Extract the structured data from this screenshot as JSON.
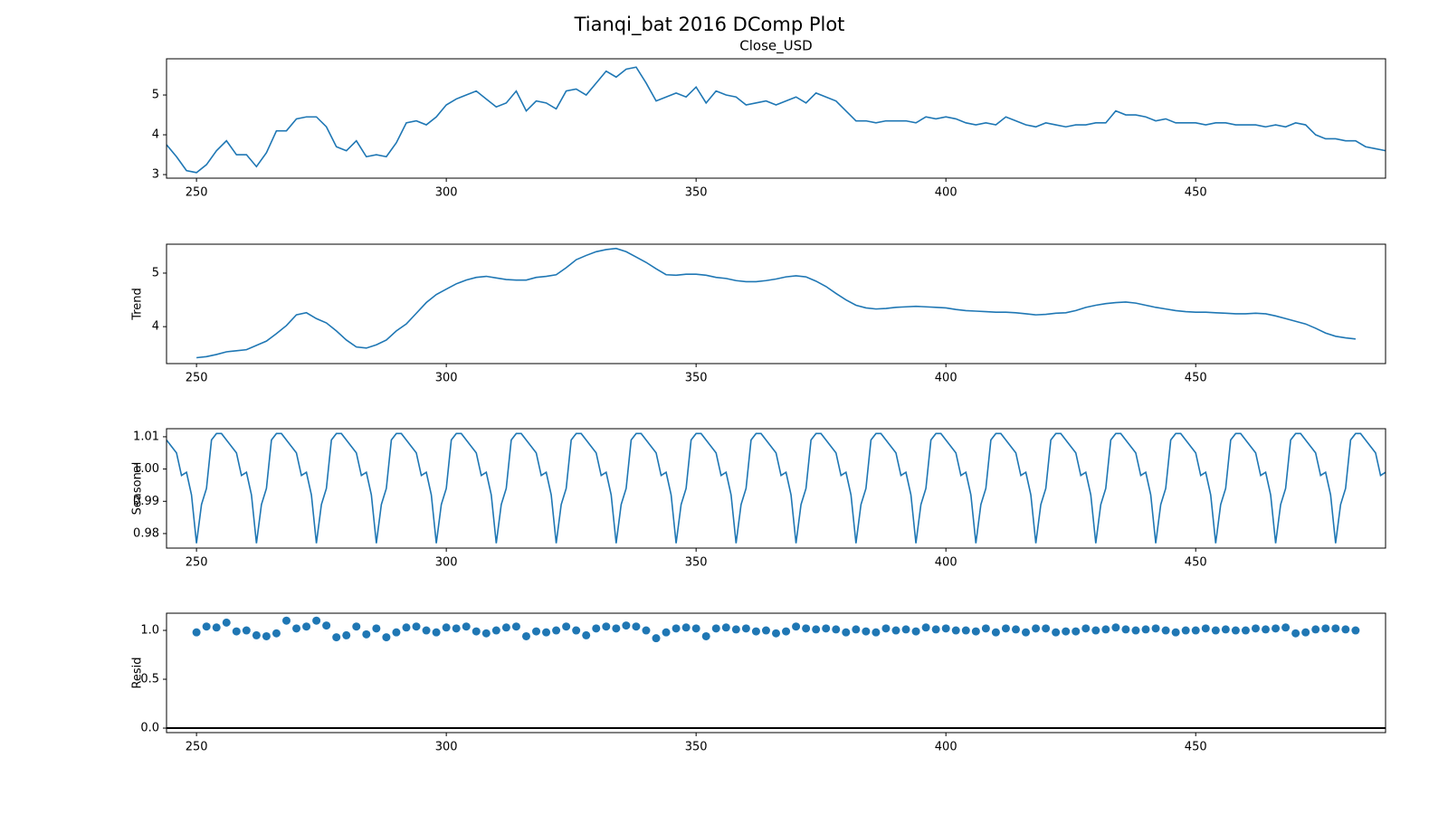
{
  "title": "Tianqi_bat 2016 DComp Plot",
  "chart_data": [
    {
      "type": "line",
      "title": "Close_USD",
      "color": "#1f77b4",
      "xlim": [
        244,
        488
      ],
      "xticks": [
        250,
        300,
        350,
        400,
        450
      ],
      "ylim": [
        2.91,
        5.91
      ],
      "yticks": [
        3,
        4,
        5
      ],
      "x": [
        244,
        246,
        248,
        250,
        252,
        254,
        256,
        258,
        260,
        262,
        264,
        266,
        268,
        270,
        272,
        274,
        276,
        278,
        280,
        282,
        284,
        286,
        288,
        290,
        292,
        294,
        296,
        298,
        300,
        302,
        304,
        306,
        308,
        310,
        312,
        314,
        316,
        318,
        320,
        322,
        324,
        326,
        328,
        330,
        332,
        334,
        336,
        338,
        340,
        342,
        344,
        346,
        348,
        350,
        352,
        354,
        356,
        358,
        360,
        362,
        364,
        366,
        368,
        370,
        372,
        374,
        376,
        378,
        380,
        382,
        384,
        386,
        388,
        390,
        392,
        394,
        396,
        398,
        400,
        402,
        404,
        406,
        408,
        410,
        412,
        414,
        416,
        418,
        420,
        422,
        424,
        426,
        428,
        430,
        432,
        434,
        436,
        438,
        440,
        442,
        444,
        446,
        448,
        450,
        452,
        454,
        456,
        458,
        460,
        462,
        464,
        466,
        468,
        470,
        472,
        474,
        476,
        478,
        480,
        482,
        484,
        486,
        488
      ],
      "values": [
        3.75,
        3.45,
        3.1,
        3.05,
        3.25,
        3.6,
        3.85,
        3.5,
        3.5,
        3.2,
        3.55,
        4.1,
        4.1,
        4.4,
        4.45,
        4.45,
        4.2,
        3.7,
        3.6,
        3.85,
        3.45,
        3.5,
        3.45,
        3.8,
        4.3,
        4.35,
        4.25,
        4.45,
        4.75,
        4.9,
        5.0,
        5.1,
        4.9,
        4.7,
        4.8,
        5.1,
        4.6,
        4.85,
        4.8,
        4.65,
        5.1,
        5.15,
        5.0,
        5.3,
        5.6,
        5.45,
        5.65,
        5.7,
        5.3,
        4.85,
        4.95,
        5.05,
        4.95,
        5.2,
        4.8,
        5.1,
        5.0,
        4.95,
        4.75,
        4.8,
        4.85,
        4.75,
        4.85,
        4.95,
        4.8,
        5.05,
        4.95,
        4.85,
        4.6,
        4.35,
        4.35,
        4.3,
        4.35,
        4.35,
        4.35,
        4.3,
        4.45,
        4.4,
        4.45,
        4.4,
        4.3,
        4.25,
        4.3,
        4.25,
        4.45,
        4.35,
        4.25,
        4.2,
        4.3,
        4.25,
        4.2,
        4.25,
        4.25,
        4.3,
        4.3,
        4.6,
        4.5,
        4.5,
        4.45,
        4.35,
        4.4,
        4.3,
        4.3,
        4.3,
        4.25,
        4.3,
        4.3,
        4.25,
        4.25,
        4.25,
        4.2,
        4.25,
        4.2,
        4.3,
        4.25,
        4.0,
        3.9,
        3.9,
        3.85,
        3.85,
        3.7,
        3.65,
        3.6
      ]
    },
    {
      "type": "line",
      "ylabel": "Trend",
      "color": "#1f77b4",
      "xlim": [
        244,
        488
      ],
      "xticks": [
        250,
        300,
        350,
        400,
        450
      ],
      "ylim": [
        3.31,
        5.54
      ],
      "yticks": [
        4,
        5
      ],
      "x": [
        250,
        252,
        254,
        256,
        258,
        260,
        262,
        264,
        266,
        268,
        270,
        272,
        274,
        276,
        278,
        280,
        282,
        284,
        286,
        288,
        290,
        292,
        294,
        296,
        298,
        300,
        302,
        304,
        306,
        308,
        310,
        312,
        314,
        316,
        318,
        320,
        322,
        324,
        326,
        328,
        330,
        332,
        334,
        336,
        338,
        340,
        342,
        344,
        346,
        348,
        350,
        352,
        354,
        356,
        358,
        360,
        362,
        364,
        366,
        368,
        370,
        372,
        374,
        376,
        378,
        380,
        382,
        384,
        386,
        388,
        390,
        392,
        394,
        396,
        398,
        400,
        402,
        404,
        406,
        408,
        410,
        412,
        414,
        416,
        418,
        420,
        422,
        424,
        426,
        428,
        430,
        432,
        434,
        436,
        438,
        440,
        442,
        444,
        446,
        448,
        450,
        452,
        454,
        456,
        458,
        460,
        462,
        464,
        466,
        468,
        470,
        472,
        474,
        476,
        478,
        480,
        482
      ],
      "values": [
        3.42,
        3.44,
        3.48,
        3.53,
        3.55,
        3.57,
        3.65,
        3.73,
        3.87,
        4.02,
        4.22,
        4.26,
        4.15,
        4.07,
        3.92,
        3.75,
        3.62,
        3.6,
        3.66,
        3.75,
        3.92,
        4.05,
        4.25,
        4.45,
        4.6,
        4.7,
        4.8,
        4.87,
        4.92,
        4.94,
        4.91,
        4.88,
        4.87,
        4.87,
        4.92,
        4.94,
        4.97,
        5.1,
        5.25,
        5.33,
        5.4,
        5.44,
        5.46,
        5.4,
        5.3,
        5.2,
        5.08,
        4.97,
        4.96,
        4.98,
        4.98,
        4.96,
        4.92,
        4.9,
        4.86,
        4.84,
        4.84,
        4.86,
        4.89,
        4.93,
        4.95,
        4.93,
        4.85,
        4.75,
        4.62,
        4.5,
        4.4,
        4.35,
        4.33,
        4.34,
        4.36,
        4.37,
        4.38,
        4.37,
        4.36,
        4.35,
        4.32,
        4.3,
        4.29,
        4.28,
        4.27,
        4.27,
        4.26,
        4.24,
        4.22,
        4.23,
        4.25,
        4.26,
        4.3,
        4.36,
        4.4,
        4.43,
        4.45,
        4.46,
        4.44,
        4.4,
        4.36,
        4.33,
        4.3,
        4.28,
        4.27,
        4.27,
        4.26,
        4.25,
        4.24,
        4.24,
        4.25,
        4.24,
        4.2,
        4.15,
        4.1,
        4.05,
        3.97,
        3.88,
        3.82,
        3.79,
        3.77
      ]
    },
    {
      "type": "line",
      "ylabel": "Seasonal",
      "color": "#1f77b4",
      "xlim": [
        244,
        488
      ],
      "xticks": [
        250,
        300,
        350,
        400,
        450
      ],
      "ylim": [
        0.9755,
        1.0125
      ],
      "yticks": [
        0.98,
        0.99,
        {
          "value": 1.0,
          "label": "1.00"
        },
        1.01
      ],
      "x": [
        244,
        245,
        246,
        247,
        248,
        249,
        250,
        251,
        252,
        253,
        254,
        255,
        256,
        257,
        258,
        259,
        260,
        261,
        262,
        263,
        264,
        265,
        266,
        267,
        268,
        269,
        270,
        271,
        272,
        273,
        274,
        275,
        276,
        277,
        278,
        279,
        280,
        281,
        282,
        283,
        284,
        285,
        286,
        287,
        288,
        289,
        290,
        291,
        292,
        293,
        294,
        295,
        296,
        297,
        298,
        299,
        300,
        301,
        302,
        303,
        304,
        305,
        306,
        307,
        308,
        309,
        310,
        311,
        312,
        313,
        314,
        315,
        316,
        317,
        318,
        319,
        320,
        321,
        322,
        323,
        324,
        325,
        326,
        327,
        328,
        329,
        330,
        331,
        332,
        333,
        334,
        335,
        336,
        337,
        338,
        339,
        340,
        341,
        342,
        343,
        344,
        345,
        346,
        347,
        348,
        349,
        350,
        351,
        352,
        353,
        354,
        355,
        356,
        357,
        358,
        359,
        360,
        361,
        362,
        363,
        364,
        365,
        366,
        367,
        368,
        369,
        370,
        371,
        372,
        373,
        374,
        375,
        376,
        377,
        378,
        379,
        380,
        381,
        382,
        383,
        384,
        385,
        386,
        387,
        388,
        389,
        390,
        391,
        392,
        393,
        394,
        395,
        396,
        397,
        398,
        399,
        400,
        401,
        402,
        403,
        404,
        405,
        406,
        407,
        408,
        409,
        410,
        411,
        412,
        413,
        414,
        415,
        416,
        417,
        418,
        419,
        420,
        421,
        422,
        423,
        424,
        425,
        426,
        427,
        428,
        429,
        430,
        431,
        432,
        433,
        434,
        435,
        436,
        437,
        438,
        439,
        440,
        441,
        442,
        443,
        444,
        445,
        446,
        447,
        448,
        449,
        450,
        451,
        452,
        453,
        454,
        455,
        456,
        457,
        458,
        459,
        460,
        461,
        462,
        463,
        464,
        465,
        466,
        467,
        468,
        469,
        470,
        471,
        472,
        473,
        474,
        475,
        476,
        477,
        478,
        479,
        480,
        481,
        482,
        483,
        484,
        485,
        486,
        487,
        488
      ],
      "values": [
        1.009,
        1.007,
        1.005,
        0.998,
        0.999,
        0.992,
        0.977,
        0.989,
        0.994,
        1.009,
        1.011,
        1.011,
        1.009,
        1.007,
        1.005,
        0.998,
        0.999,
        0.992,
        0.977,
        0.989,
        0.994,
        1.009,
        1.011,
        1.011,
        1.009,
        1.007,
        1.005,
        0.998,
        0.999,
        0.992,
        0.977,
        0.989,
        0.994,
        1.009,
        1.011,
        1.011,
        1.009,
        1.007,
        1.005,
        0.998,
        0.999,
        0.992,
        0.977,
        0.989,
        0.994,
        1.009,
        1.011,
        1.011,
        1.009,
        1.007,
        1.005,
        0.998,
        0.999,
        0.992,
        0.977,
        0.989,
        0.994,
        1.009,
        1.011,
        1.011,
        1.009,
        1.007,
        1.005,
        0.998,
        0.999,
        0.992,
        0.977,
        0.989,
        0.994,
        1.009,
        1.011,
        1.011,
        1.009,
        1.007,
        1.005,
        0.998,
        0.999,
        0.992,
        0.977,
        0.989,
        0.994,
        1.009,
        1.011,
        1.011,
        1.009,
        1.007,
        1.005,
        0.998,
        0.999,
        0.992,
        0.977,
        0.989,
        0.994,
        1.009,
        1.011,
        1.011,
        1.009,
        1.007,
        1.005,
        0.998,
        0.999,
        0.992,
        0.977,
        0.989,
        0.994,
        1.009,
        1.011,
        1.011,
        1.009,
        1.007,
        1.005,
        0.998,
        0.999,
        0.992,
        0.977,
        0.989,
        0.994,
        1.009,
        1.011,
        1.011,
        1.009,
        1.007,
        1.005,
        0.998,
        0.999,
        0.992,
        0.977,
        0.989,
        0.994,
        1.009,
        1.011,
        1.011,
        1.009,
        1.007,
        1.005,
        0.998,
        0.999,
        0.992,
        0.977,
        0.989,
        0.994,
        1.009,
        1.011,
        1.011,
        1.009,
        1.007,
        1.005,
        0.998,
        0.999,
        0.992,
        0.977,
        0.989,
        0.994,
        1.009,
        1.011,
        1.011,
        1.009,
        1.007,
        1.005,
        0.998,
        0.999,
        0.992,
        0.977,
        0.989,
        0.994,
        1.009,
        1.011,
        1.011,
        1.009,
        1.007,
        1.005,
        0.998,
        0.999,
        0.992,
        0.977,
        0.989,
        0.994,
        1.009,
        1.011,
        1.011,
        1.009,
        1.007,
        1.005,
        0.998,
        0.999,
        0.992,
        0.977,
        0.989,
        0.994,
        1.009,
        1.011,
        1.011,
        1.009,
        1.007,
        1.005,
        0.998,
        0.999,
        0.992,
        0.977,
        0.989,
        0.994,
        1.009,
        1.011,
        1.011,
        1.009,
        1.007,
        1.005,
        0.998,
        0.999,
        0.992,
        0.977,
        0.989,
        0.994,
        1.009,
        1.011,
        1.011,
        1.009,
        1.007,
        1.005,
        0.998,
        0.999,
        0.992,
        0.977,
        0.989,
        0.994,
        1.009,
        1.011,
        1.011,
        1.009,
        1.007,
        1.005,
        0.998,
        0.999,
        0.992,
        0.977,
        0.989,
        0.994,
        1.009,
        1.011,
        1.011,
        1.009,
        1.007,
        1.005,
        0.998,
        0.999
      ]
    },
    {
      "type": "scatter",
      "ylabel": "Resid",
      "color": "#1f77b4",
      "hline": 0,
      "hline_color": "#000000",
      "xlim": [
        244,
        488
      ],
      "xticks": [
        250,
        300,
        350,
        400,
        450
      ],
      "ylim": [
        -0.046,
        1.176
      ],
      "yticks": [
        {
          "value": 0,
          "label": "0.0"
        },
        0.5,
        {
          "value": 1,
          "label": "1.0"
        }
      ],
      "x": [
        250,
        252,
        254,
        256,
        258,
        260,
        262,
        264,
        266,
        268,
        270,
        272,
        274,
        276,
        278,
        280,
        282,
        284,
        286,
        288,
        290,
        292,
        294,
        296,
        298,
        300,
        302,
        304,
        306,
        308,
        310,
        312,
        314,
        316,
        318,
        320,
        322,
        324,
        326,
        328,
        330,
        332,
        334,
        336,
        338,
        340,
        342,
        344,
        346,
        348,
        350,
        352,
        354,
        356,
        358,
        360,
        362,
        364,
        366,
        368,
        370,
        372,
        374,
        376,
        378,
        380,
        382,
        384,
        386,
        388,
        390,
        392,
        394,
        396,
        398,
        400,
        402,
        404,
        406,
        408,
        410,
        412,
        414,
        416,
        418,
        420,
        422,
        424,
        426,
        428,
        430,
        432,
        434,
        436,
        438,
        440,
        442,
        444,
        446,
        448,
        450,
        452,
        454,
        456,
        458,
        460,
        462,
        464,
        466,
        468,
        470,
        472,
        474,
        476,
        478,
        480,
        482
      ],
      "values": [
        0.98,
        1.04,
        1.03,
        1.08,
        0.99,
        1.0,
        0.95,
        0.94,
        0.97,
        1.1,
        1.02,
        1.04,
        1.1,
        1.05,
        0.93,
        0.95,
        1.04,
        0.96,
        1.02,
        0.93,
        0.98,
        1.03,
        1.04,
        1.0,
        0.98,
        1.03,
        1.02,
        1.04,
        0.99,
        0.97,
        1.0,
        1.03,
        1.04,
        0.94,
        0.99,
        0.98,
        1.0,
        1.04,
        1.0,
        0.95,
        1.02,
        1.04,
        1.02,
        1.05,
        1.04,
        1.0,
        0.92,
        0.98,
        1.02,
        1.03,
        1.02,
        0.94,
        1.02,
        1.03,
        1.01,
        1.02,
        0.99,
        1.0,
        0.97,
        0.99,
        1.04,
        1.02,
        1.01,
        1.02,
        1.01,
        0.98,
        1.01,
        0.99,
        0.98,
        1.02,
        1.0,
        1.01,
        0.99,
        1.03,
        1.01,
        1.02,
        1.0,
        1.0,
        0.99,
        1.02,
        0.98,
        1.02,
        1.01,
        0.98,
        1.02,
        1.02,
        0.98,
        0.99,
        0.99,
        1.02,
        1.0,
        1.01,
        1.03,
        1.01,
        1.0,
        1.01,
        1.02,
        1.0,
        0.98,
        1.0,
        1.0,
        1.02,
        1.0,
        1.01,
        1.0,
        1.0,
        1.02,
        1.01,
        1.02,
        1.03,
        0.97,
        0.98,
        1.01,
        1.02,
        1.02,
        1.01,
        1.0
      ]
    }
  ]
}
